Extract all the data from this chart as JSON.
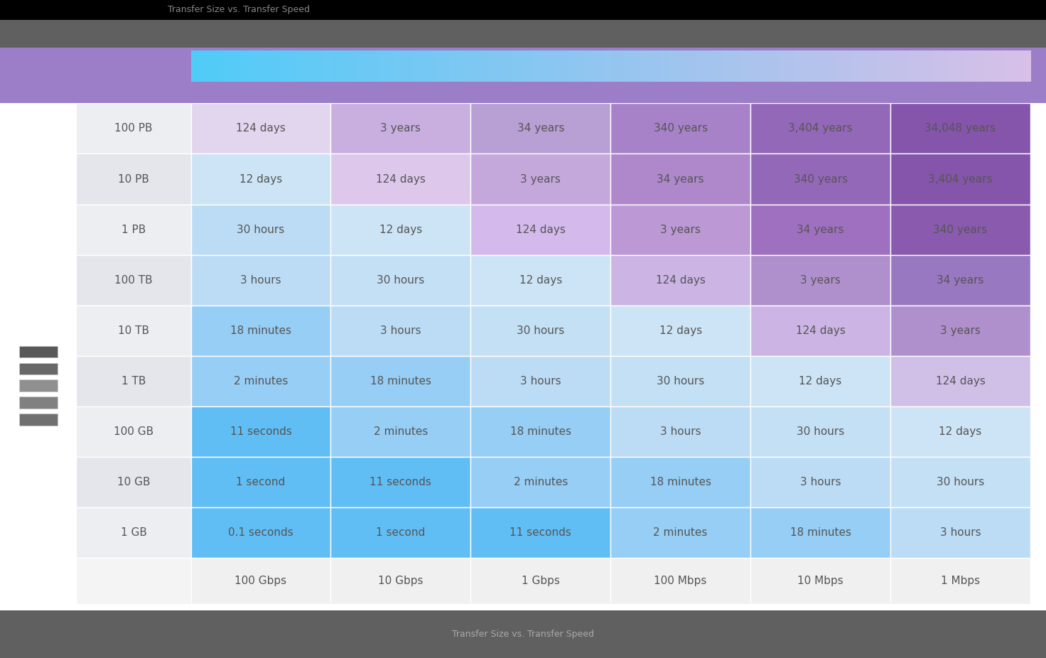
{
  "rows": [
    "100 PB",
    "10 PB",
    "1 PB",
    "100 TB",
    "10 TB",
    "1 TB",
    "100 GB",
    "10 GB",
    "1 GB"
  ],
  "cols": [
    "100 Gbps",
    "10 Gbps",
    "1 Gbps",
    "100 Mbps",
    "10 Mbps",
    "1 Mbps"
  ],
  "values": [
    [
      "124 days",
      "3 years",
      "34 years",
      "340 years",
      "3,404 years",
      "34,048 years"
    ],
    [
      "12 days",
      "124 days",
      "3 years",
      "34 years",
      "340 years",
      "3,404 years"
    ],
    [
      "30 hours",
      "12 days",
      "124 days",
      "3 years",
      "34 years",
      "340 years"
    ],
    [
      "3 hours",
      "30 hours",
      "12 days",
      "124 days",
      "3 years",
      "34 years"
    ],
    [
      "18 minutes",
      "3 hours",
      "30 hours",
      "12 days",
      "124 days",
      "3 years"
    ],
    [
      "2 minutes",
      "18 minutes",
      "3 hours",
      "30 hours",
      "12 days",
      "124 days"
    ],
    [
      "11 seconds",
      "2 minutes",
      "18 minutes",
      "3 hours",
      "30 hours",
      "12 days"
    ],
    [
      "1 second",
      "11 seconds",
      "2 minutes",
      "18 minutes",
      "3 hours",
      "30 hours"
    ],
    [
      "0.1 seconds",
      "1 second",
      "11 seconds",
      "2 minutes",
      "18 minutes",
      "3 hours"
    ]
  ],
  "cell_colors": [
    [
      "#e2d5ee",
      "#c8afe0",
      "#b89fd4",
      "#a882c8",
      "#9468b8",
      "#8455aa"
    ],
    [
      "#cce4f5",
      "#ddc8ec",
      "#c4a8dc",
      "#ae88ca",
      "#9468b8",
      "#8455aa"
    ],
    [
      "#bcdcf5",
      "#cce4f5",
      "#d4baec",
      "#bc98d5",
      "#a070c0",
      "#8a5aae"
    ],
    [
      "#bcdcf5",
      "#c4e0f5",
      "#cce4f5",
      "#ccb4e4",
      "#b090cc",
      "#9878c0"
    ],
    [
      "#96cef5",
      "#bcdcf5",
      "#c4e0f5",
      "#cce4f5",
      "#ccb4e4",
      "#b090cc"
    ],
    [
      "#96cef5",
      "#96cef5",
      "#bcdcf5",
      "#c4e0f5",
      "#cce4f5",
      "#d0c0e8"
    ],
    [
      "#60bef5",
      "#96cef5",
      "#96cef5",
      "#bcdcf5",
      "#c4e0f5",
      "#cce4f5"
    ],
    [
      "#60bef5",
      "#60bef5",
      "#96cef5",
      "#96cef5",
      "#bcdcf5",
      "#c4e0f5"
    ],
    [
      "#60bef5",
      "#60bef5",
      "#60bef5",
      "#96cef5",
      "#96cef5",
      "#bcdcf5"
    ]
  ],
  "row_header_bg_even": "#eceef2",
  "row_header_bg_odd": "#e4e6ec",
  "bottom_col_bg": "#f0f0f0",
  "text_color": "#555555",
  "font_size_cell": 11,
  "gradient_header_left": "#50ccf8",
  "gradient_header_right": "#d8c0e8",
  "purple_bar_color": "#9b7dc8",
  "black_bar_color": "#000000",
  "gray_bar_color": "#606060",
  "footer_bar_color": "#606060",
  "footer_text": "Transfer Size vs. Transfer Speed",
  "icon_colors": [
    "#707070",
    "#808080",
    "#909090",
    "#686868",
    "#585858"
  ],
  "small_title": "Transfer Size vs. Transfer Speed"
}
